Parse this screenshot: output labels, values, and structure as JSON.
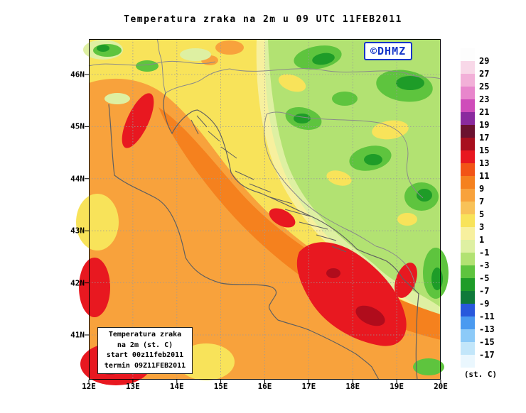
{
  "title": "Temperatura zraka na 2m u 09 UTC 11FEB2011",
  "logo": {
    "text": "©DHMZ",
    "color": "#1535c8"
  },
  "axes": {
    "x_tick_labels": [
      "12E",
      "13E",
      "14E",
      "15E",
      "16E",
      "17E",
      "18E",
      "19E",
      "20E"
    ],
    "y_tick_labels": [
      "46N",
      "45N",
      "44N",
      "43N",
      "42N",
      "41N"
    ]
  },
  "info_box": {
    "lines": [
      "Temperatura zraka",
      "na 2m (st. C)",
      "start 00z11feb2011",
      "termin 09Z11FEB2011"
    ]
  },
  "colorbar": {
    "unit_label": "(st. C)",
    "boundary_labels": [
      "29",
      "27",
      "25",
      "23",
      "21",
      "19",
      "17",
      "15",
      "13",
      "11",
      "9",
      "7",
      "5",
      "3",
      "1",
      "-1",
      "-3",
      "-5",
      "-7",
      "-9",
      "-11",
      "-13",
      "-15",
      "-17"
    ],
    "segment_colors_top_to_bottom": [
      "#fdfdfd",
      "#f8d8e8",
      "#f2b0d8",
      "#e886cc",
      "#cf4cba",
      "#8a2a9e",
      "#6b1230",
      "#a80f1e",
      "#e81820",
      "#f25416",
      "#f5811e",
      "#f8a23c",
      "#f8c258",
      "#f8e35a",
      "#f7f09e",
      "#def0a2",
      "#b2e272",
      "#5ec43e",
      "#1e9c28",
      "#0f7a3a",
      "#2858dc",
      "#4a9af0",
      "#8ccaf8",
      "#c2e6fa",
      "#eaf7fe"
    ]
  },
  "map": {
    "field_description": "Air temperature at 2 m: warm orange/red band over the Adriatic Sea and Po valley, yellow transition zones, cooler greens inland to the northeast"
  }
}
